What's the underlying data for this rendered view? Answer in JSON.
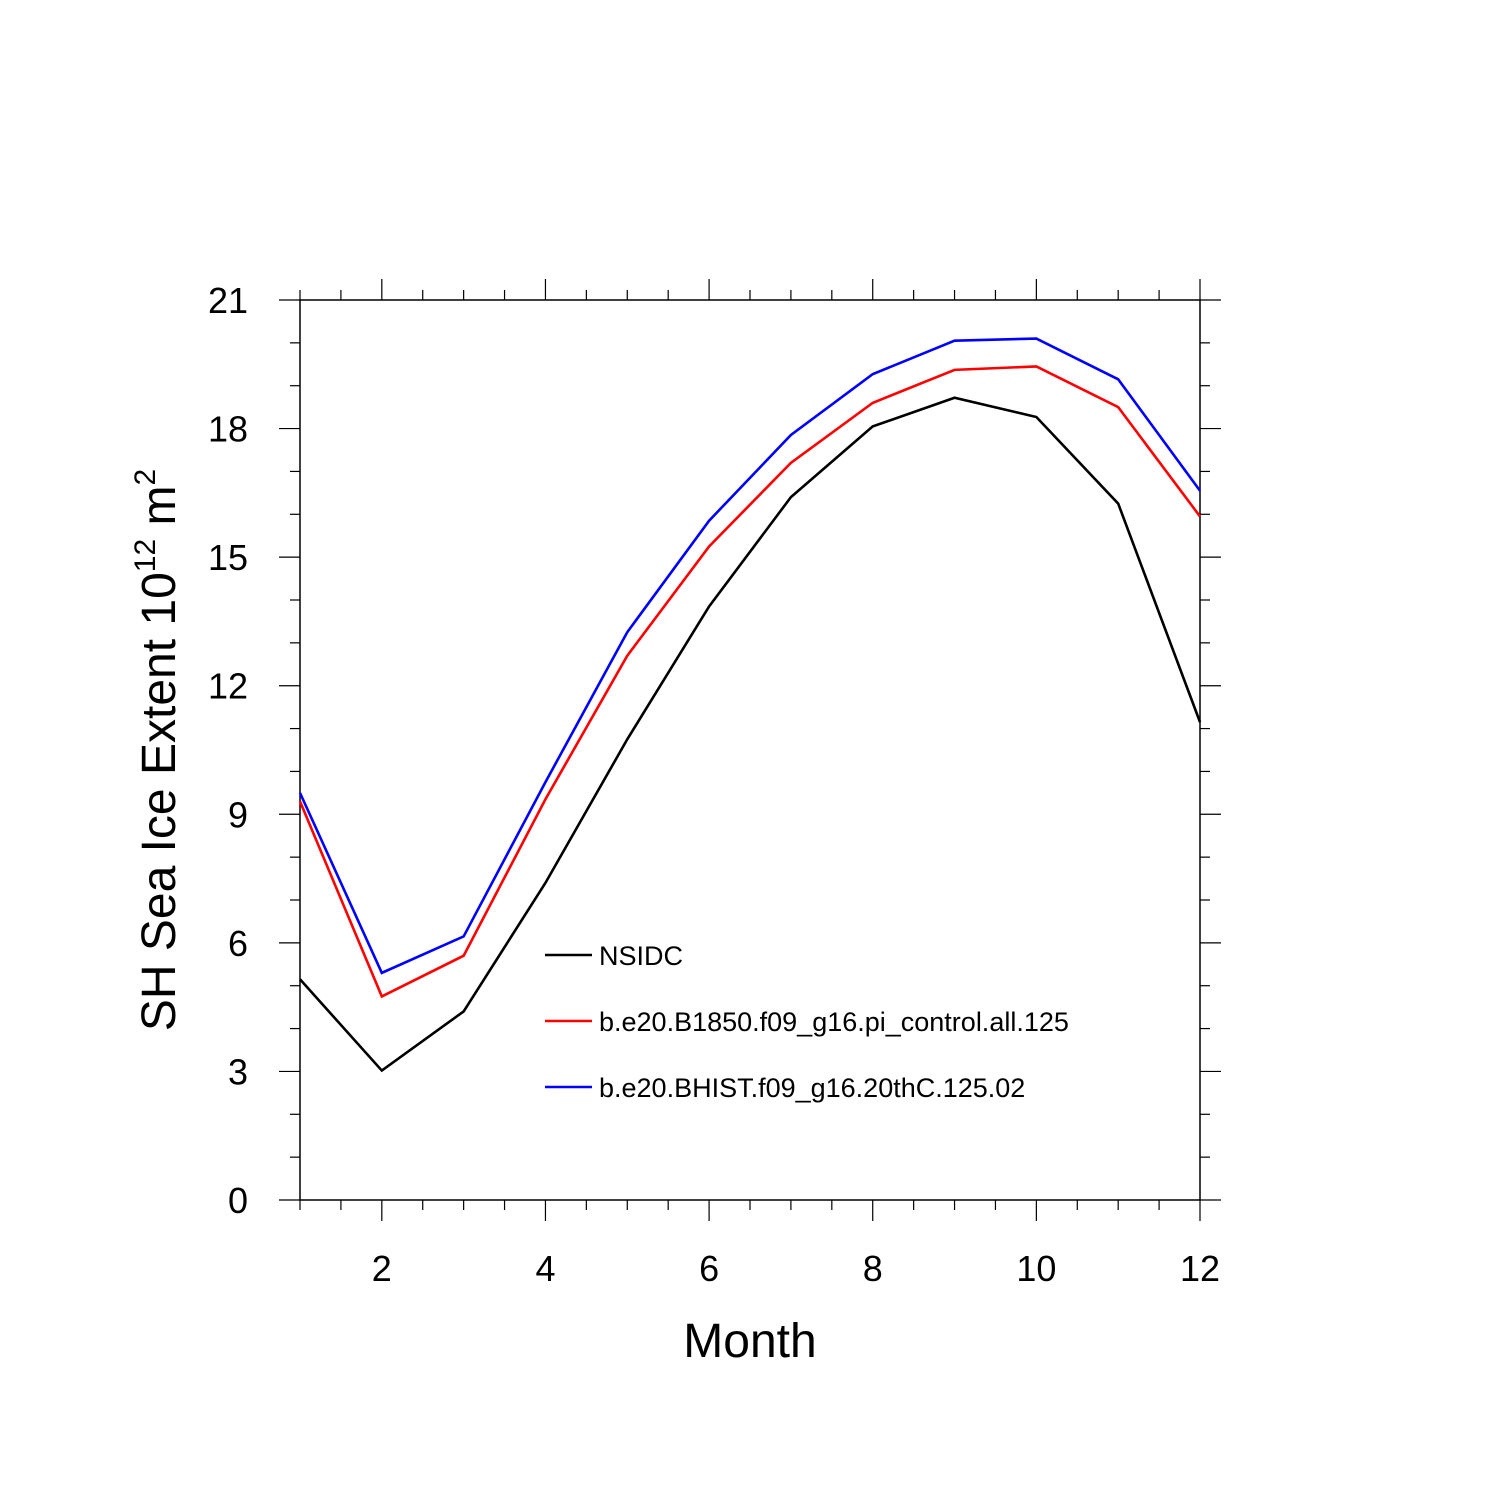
{
  "chart_data": {
    "type": "line",
    "title": "",
    "xlabel": "Month",
    "ylabel": {
      "base": "SH Sea Ice Extent 10",
      "exp1": "12",
      "mid": " m",
      "exp2": "2"
    },
    "xlim": [
      1,
      12
    ],
    "ylim": [
      0,
      21
    ],
    "x_ticks": [
      2,
      4,
      6,
      8,
      10,
      12
    ],
    "y_ticks": [
      0,
      3,
      6,
      9,
      12,
      15,
      18,
      21
    ],
    "x": [
      1,
      2,
      3,
      4,
      5,
      6,
      7,
      8,
      9,
      10,
      11,
      12
    ],
    "series": [
      {
        "name": "NSIDC",
        "color": "#000000",
        "values": [
          5.15,
          3.02,
          4.4,
          7.4,
          10.75,
          13.85,
          16.4,
          18.05,
          18.72,
          18.27,
          16.25,
          11.15
        ]
      },
      {
        "name": "b.e20.B1850.f09_g16.pi_control.all.125",
        "color": "#ff0000",
        "values": [
          9.3,
          4.75,
          5.7,
          9.35,
          12.7,
          15.25,
          17.2,
          18.6,
          19.37,
          19.45,
          18.5,
          15.95
        ]
      },
      {
        "name": "b.e20.BHIST.f09_g16.20thC.125.02",
        "color": "#0000ff",
        "values": [
          9.5,
          5.3,
          6.15,
          9.75,
          13.25,
          15.85,
          17.85,
          19.27,
          20.05,
          20.1,
          19.15,
          16.55
        ]
      }
    ],
    "grid": false,
    "legend_position": "inside-lower-center"
  }
}
